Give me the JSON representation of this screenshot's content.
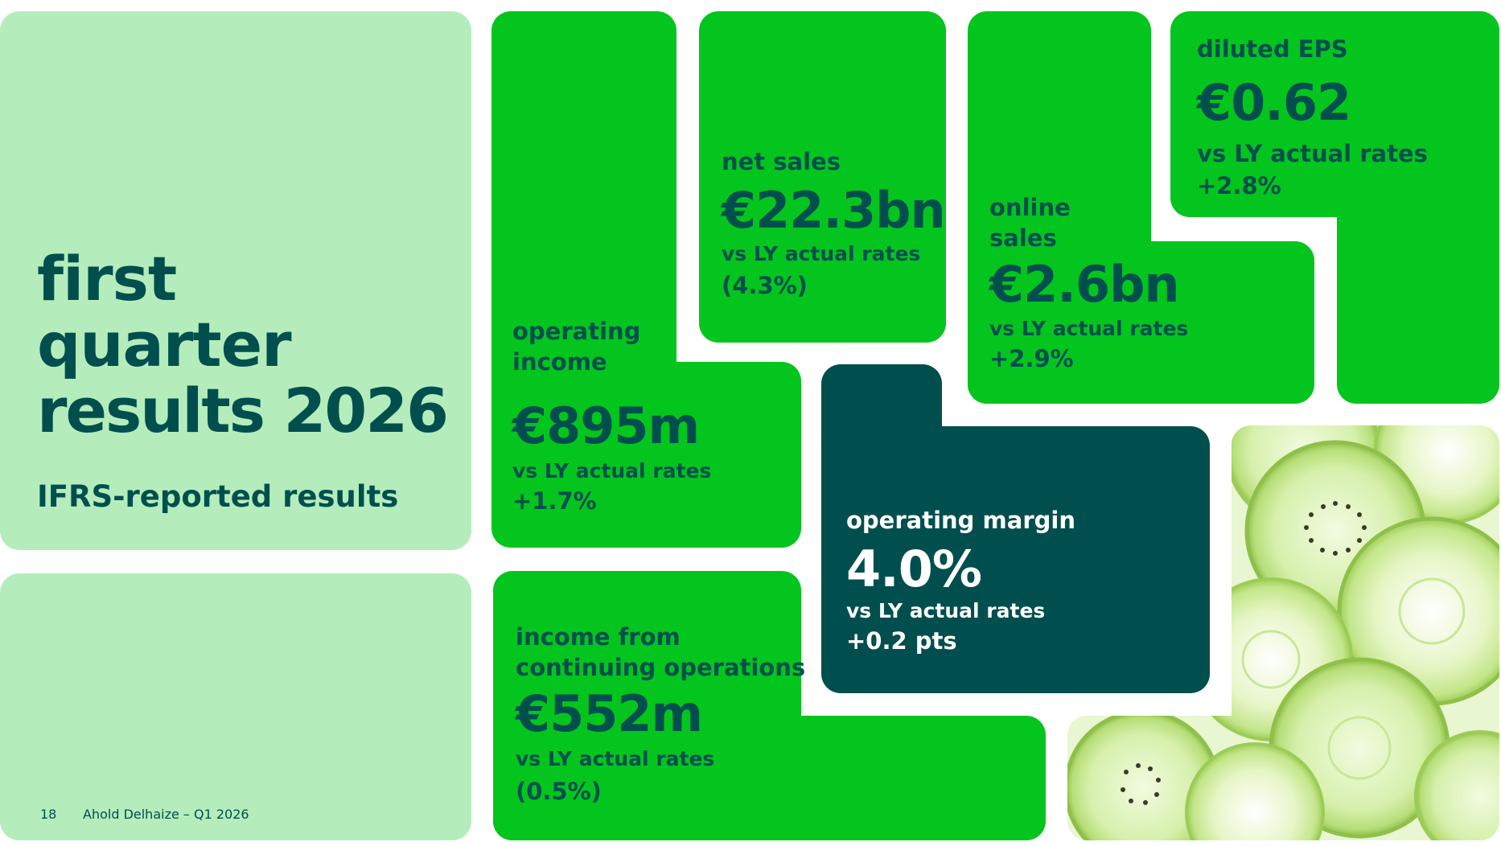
{
  "title": {
    "line1": "first",
    "line2": "quarter",
    "line3": "results 2026",
    "subtitle": "IFRS-reported results"
  },
  "footer": {
    "page_number": "18",
    "company": "Ahold Delhaize – Q1 2026"
  },
  "kpis": {
    "operating_income": {
      "label_line1": "operating",
      "label_line2": "income",
      "value": "€895m",
      "comparison": "vs LY actual rates",
      "change": "+1.7%"
    },
    "net_sales": {
      "label": "net sales",
      "value": "€22.3bn",
      "comparison": "vs LY actual rates",
      "change": "(4.3%)"
    },
    "online_sales": {
      "label_line1": "online",
      "label_line2": "sales",
      "value": "€2.6bn",
      "comparison": "vs LY actual rates",
      "change": "+2.9%"
    },
    "diluted_eps": {
      "label": "diluted EPS",
      "value": "€0.62",
      "comparison": "vs LY actual rates",
      "change": "+2.8%"
    },
    "operating_margin": {
      "label": "operating margin",
      "value": "4.0%",
      "comparison": "vs LY actual rates",
      "change": "+0.2 pts"
    },
    "income_continuing": {
      "label_line1": "income from",
      "label_line2": "continuing operations",
      "value": "€552m",
      "comparison": "vs LY actual rates",
      "change": "(0.5%)"
    }
  },
  "colors": {
    "light_green": "#b4edbb",
    "bright_green": "#03c51e",
    "dark_teal": "#004f4e",
    "image_icon": "citrus-slices-image"
  }
}
